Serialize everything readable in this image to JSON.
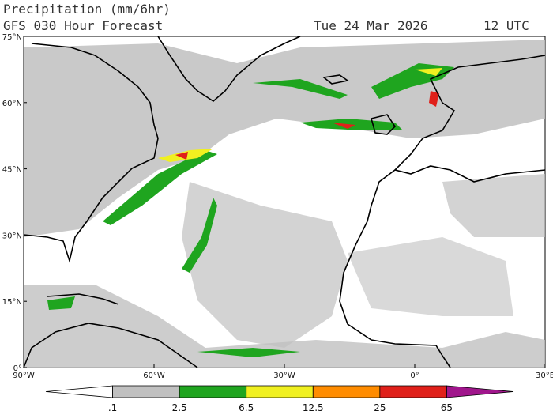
{
  "header": {
    "title": "Precipitation (mm/6hr)",
    "subtitle": "GFS 030 Hour Forecast",
    "date": "Tue 24 Mar 2026",
    "time": "12 UTC"
  },
  "map": {
    "lat_labels": [
      "75°N",
      "60°N",
      "45°N",
      "30°N",
      "15°N",
      "0°"
    ],
    "lon_labels": [
      "90°W",
      "60°W",
      "30°W",
      "0°",
      "30°E"
    ]
  },
  "colorbar": {
    "labels": [
      ".1",
      "2.5",
      "6.5",
      "12.5",
      "25",
      "65"
    ],
    "colors": [
      "#ffffff",
      "#c0c0c0",
      "#1fa51f",
      "#f0f020",
      "#ff8c00",
      "#e0201a",
      "#a0168c"
    ]
  }
}
